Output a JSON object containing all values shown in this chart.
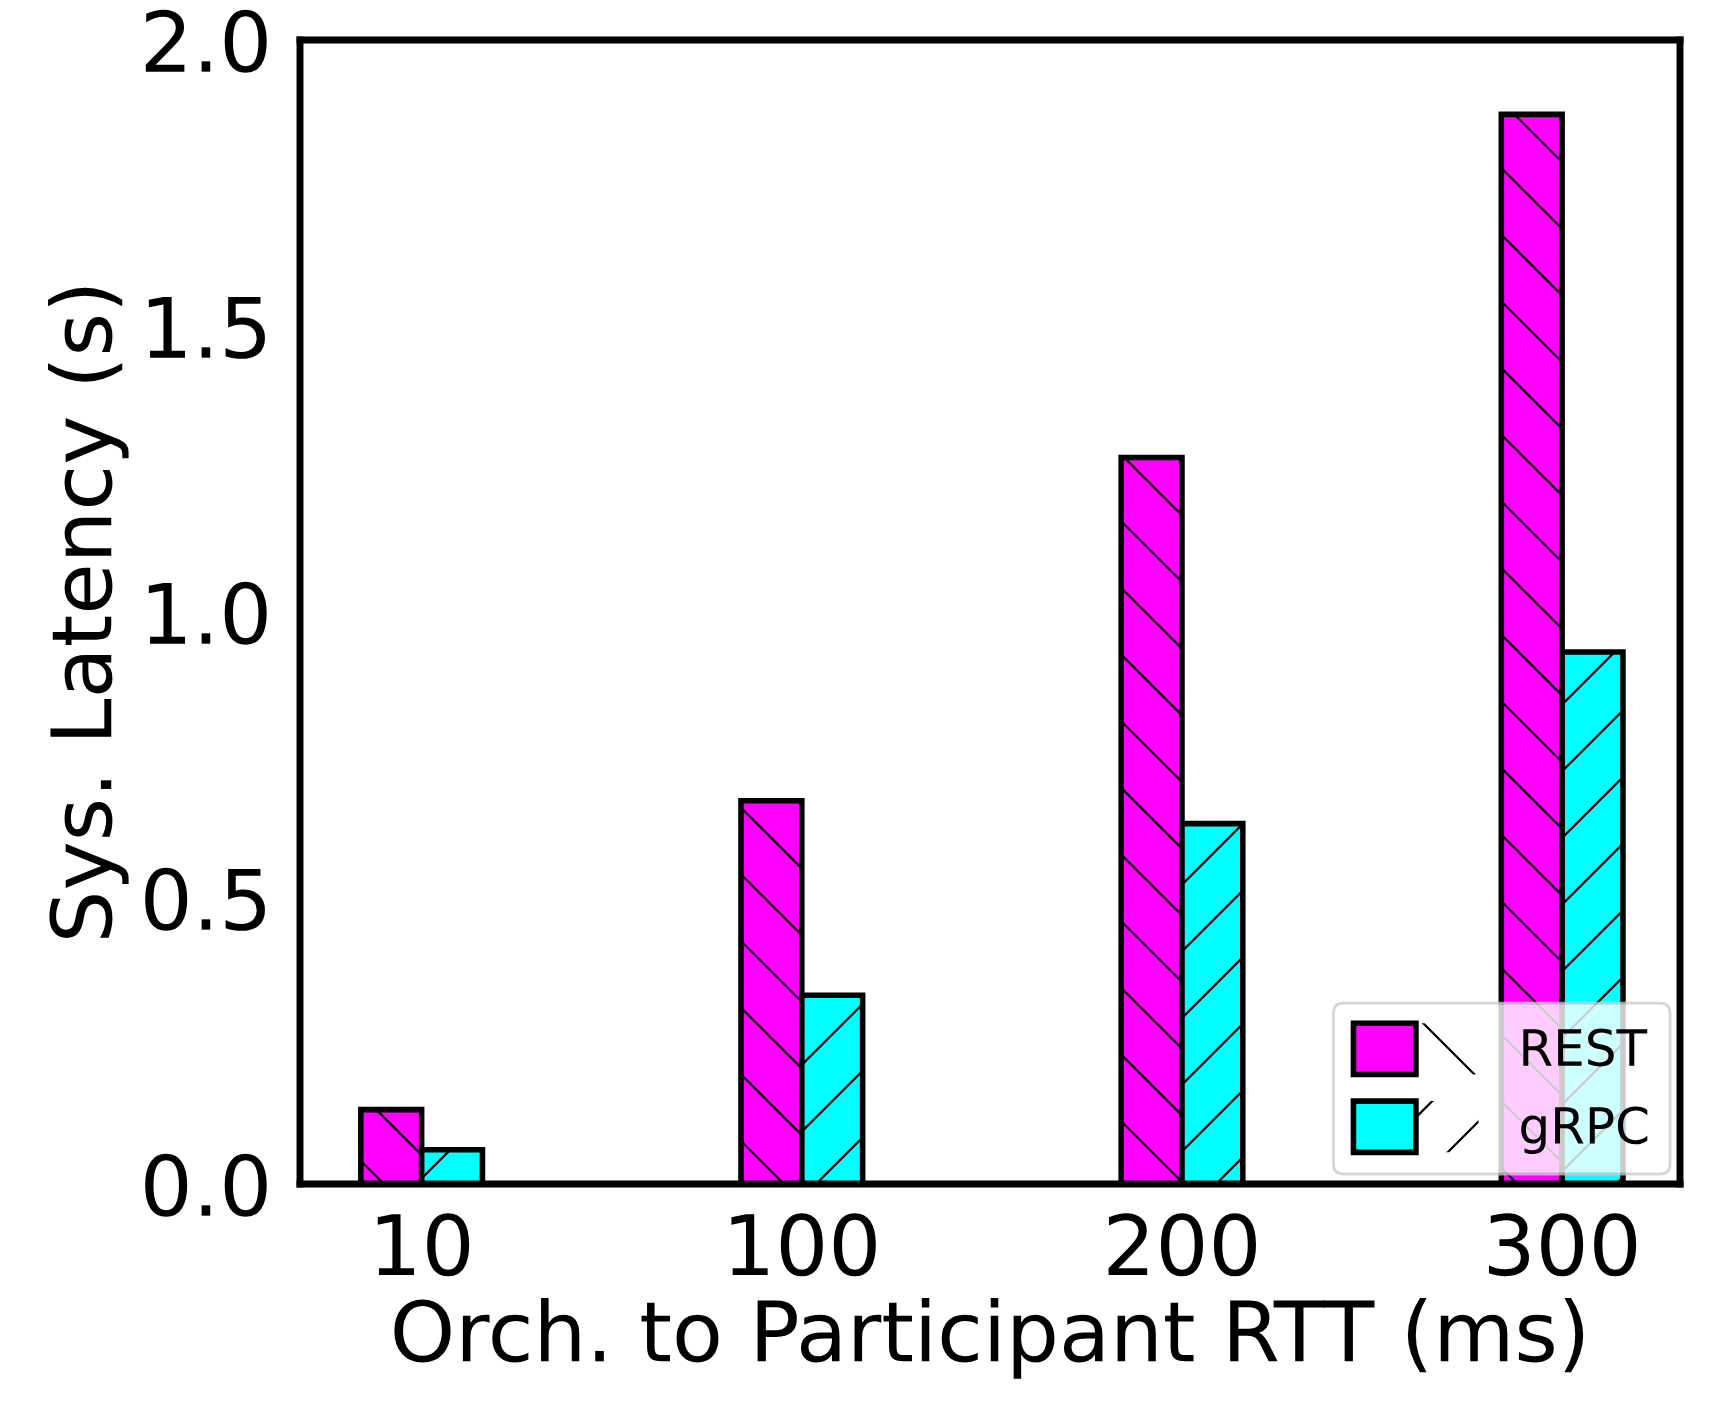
{
  "chart_data": {
    "type": "bar",
    "xlabel": "Orch. to Participant RTT (ms)",
    "ylabel": "Sys. Latency (s)",
    "categories": [
      "10",
      "100",
      "200",
      "300"
    ],
    "series": [
      {
        "name": "REST",
        "color": "#ff00ff",
        "values": [
          0.13,
          0.67,
          1.27,
          1.87
        ]
      },
      {
        "name": "gRPC",
        "color": "#00ffff",
        "values": [
          0.06,
          0.33,
          0.63,
          0.93
        ]
      }
    ],
    "ylim": [
      0,
      2.0
    ],
    "yticks": [
      {
        "value": 0,
        "label": "0.0"
      },
      {
        "value": 0.5,
        "label": "0.5"
      },
      {
        "value": 1.0,
        "label": "1.0"
      },
      {
        "value": 1.5,
        "label": "1.5"
      },
      {
        "value": 2.0,
        "label": "2.0"
      }
    ],
    "grid": false,
    "legend": "bottom right"
  }
}
